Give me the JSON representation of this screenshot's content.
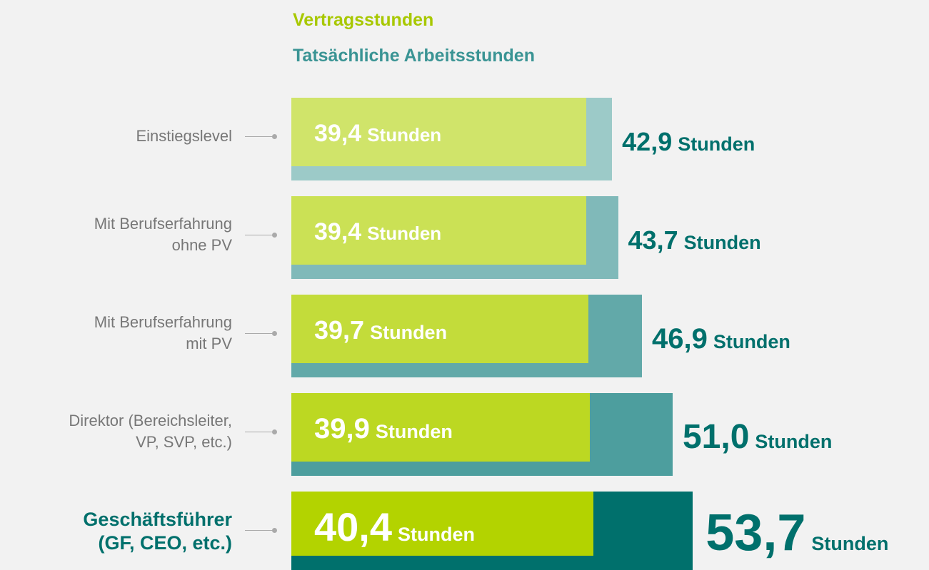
{
  "chart_data": {
    "type": "bar",
    "unit": "Stunden",
    "categories": [
      "Einstiegslevel",
      "Mit Berufserfahrung\nohne PV",
      "Mit Berufserfahrung\nmit PV",
      "Direktor (Bereichsleiter,\nVP, SVP, etc.)",
      "Geschäftsführer\n(GF, CEO, etc.)"
    ],
    "series": [
      {
        "name": "Vertragsstunden",
        "color": "#a8c800",
        "colors": [
          "#d0e46a",
          "#cbe155",
          "#c3dc3a",
          "#bcd822",
          "#b3d300"
        ],
        "values": [
          39.4,
          39.4,
          39.7,
          39.9,
          40.4
        ],
        "value_labels": [
          "39,4",
          "39,4",
          "39,7",
          "39,9",
          "40,4"
        ]
      },
      {
        "name": "Tatsächliche Arbeitsstunden",
        "color": "#3a9494",
        "colors": [
          "#9ccac8",
          "#80b9b9",
          "#62a9a9",
          "#4d9e9e",
          "#00706c"
        ],
        "values": [
          42.9,
          43.7,
          46.9,
          51.0,
          53.7
        ],
        "value_labels": [
          "42,9",
          "43,7",
          "46,9",
          "51,0",
          "53,7"
        ]
      }
    ]
  }
}
